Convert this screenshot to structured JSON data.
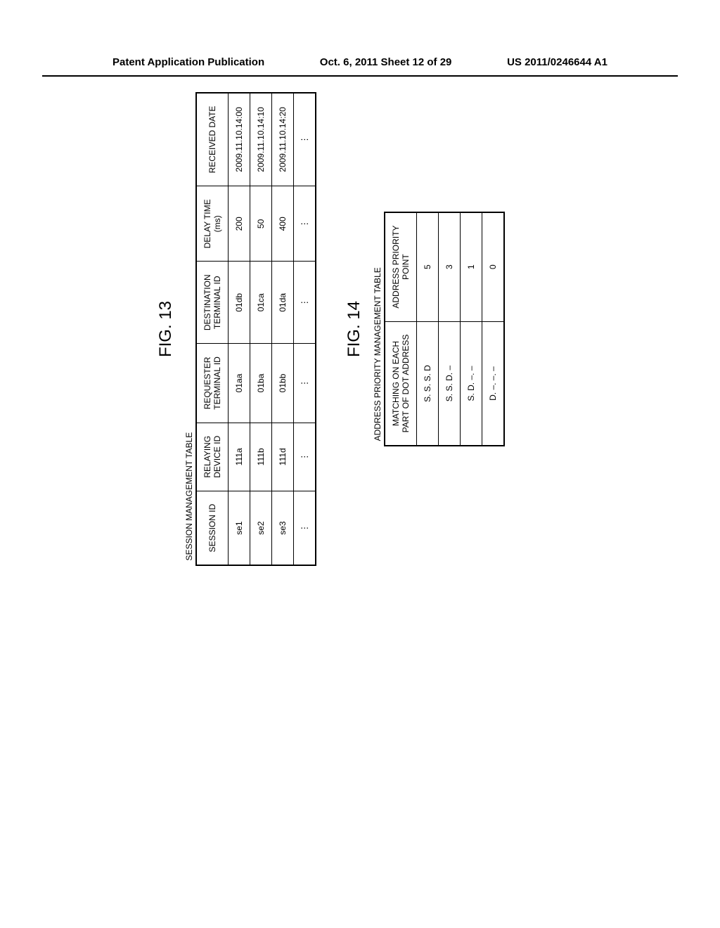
{
  "header": {
    "left": "Patent Application Publication",
    "center": "Oct. 6, 2011  Sheet 12 of 29",
    "right": "US 2011/0246644 A1"
  },
  "fig13": {
    "label": "FIG. 13",
    "table_name": "SESSION MANAGEMENT TABLE",
    "colors": {
      "border": "#000000",
      "background": "#ffffff",
      "text": "#000000"
    },
    "columns": [
      "SESSION ID",
      "RELAYING\nDEVICE ID",
      "REQUESTER\nTERMINAL ID",
      "DESTINATION\nTERMINAL ID",
      "DELAY TIME\n(ms)",
      "RECEIVED DATE"
    ],
    "rows": [
      [
        "se1",
        "111a",
        "01aa",
        "01db",
        "200",
        "2009.11.10.14:00"
      ],
      [
        "se2",
        "111b",
        "01ba",
        "01ca",
        "50",
        "2009.11.10.14:10"
      ],
      [
        "se3",
        "111d",
        "01bb",
        "01da",
        "400",
        "2009.11.10.14:20"
      ],
      [
        "⋮",
        "⋮",
        "⋮",
        "⋮",
        "⋮",
        "⋮"
      ]
    ]
  },
  "fig14": {
    "label": "FIG. 14",
    "table_name": "ADDRESS PRIORITY MANAGEMENT TABLE",
    "colors": {
      "border": "#000000",
      "background": "#ffffff",
      "text": "#000000"
    },
    "columns": [
      "MATCHING ON EACH\nPART OF DOT ADDRESS",
      "ADDRESS PRIORITY\nPOINT"
    ],
    "rows": [
      [
        "S. S. S. D",
        "5"
      ],
      [
        "S. S. D. –",
        "3"
      ],
      [
        "S. D. –. –",
        "1"
      ],
      [
        "D. –. –. –",
        "0"
      ]
    ]
  }
}
